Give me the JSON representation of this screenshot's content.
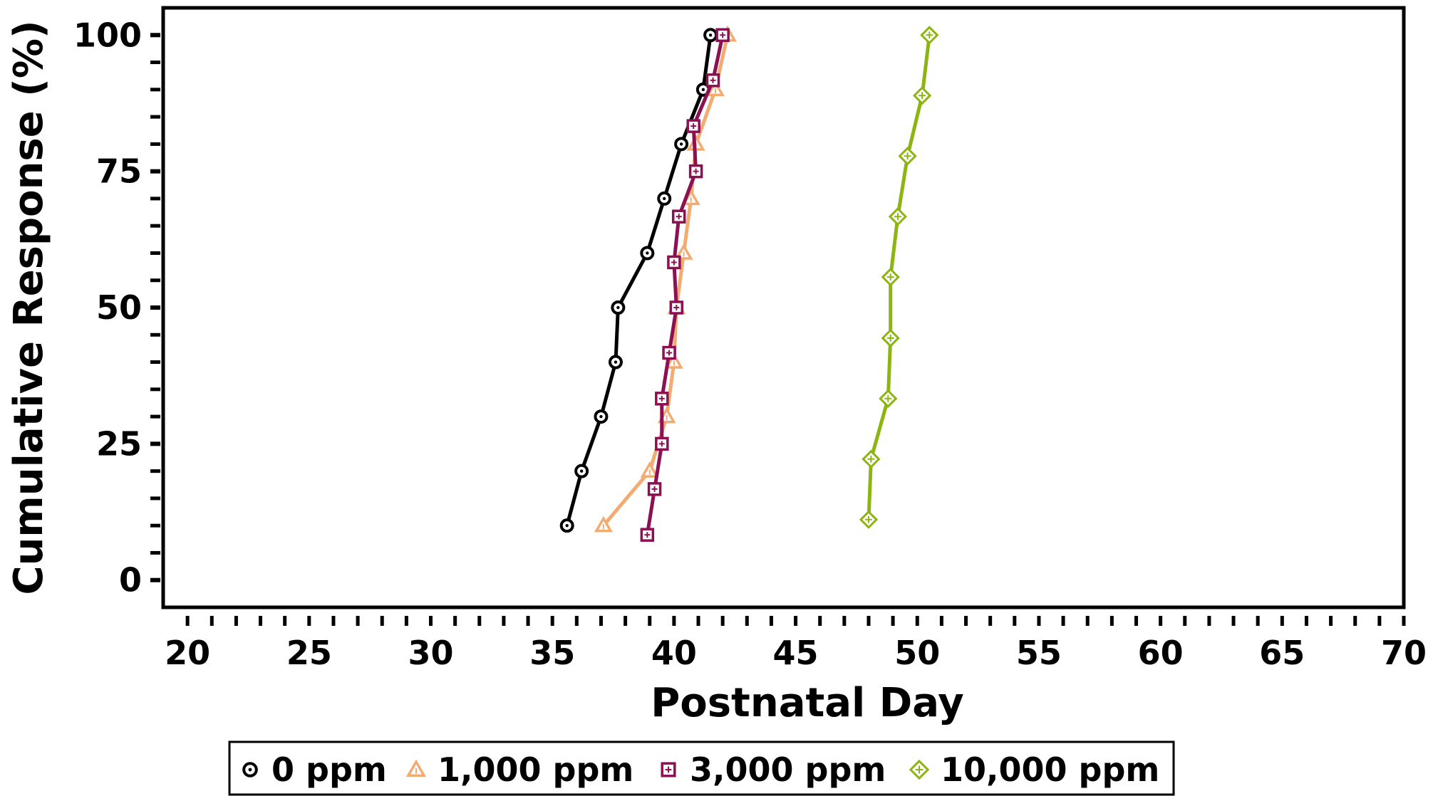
{
  "chart_data": {
    "type": "line",
    "title": "",
    "xlabel": "Postnatal Day",
    "ylabel": "Cumulative Response (%)",
    "xlim": [
      19,
      70
    ],
    "ylim": [
      -5,
      105
    ],
    "x_ticks": [
      20,
      25,
      30,
      35,
      40,
      45,
      50,
      55,
      60,
      65,
      70
    ],
    "x_tick_labels": [
      "20",
      "25",
      "30",
      "35",
      "40",
      "45",
      "50",
      "55",
      "60",
      "65",
      "70"
    ],
    "y_ticks": [
      0,
      25,
      50,
      75,
      100
    ],
    "y_tick_labels": [
      "0",
      "25",
      "50",
      "75",
      "100"
    ],
    "grid": false,
    "legend_position": "bottom",
    "series": [
      {
        "name": "0 ppm",
        "color": "#000000",
        "marker": "circle",
        "points": [
          [
            35.6,
            10
          ],
          [
            36.2,
            20
          ],
          [
            37.0,
            30
          ],
          [
            37.6,
            40
          ],
          [
            37.7,
            50
          ],
          [
            38.9,
            60
          ],
          [
            39.6,
            70
          ],
          [
            40.3,
            80
          ],
          [
            41.2,
            90
          ],
          [
            41.5,
            100
          ]
        ]
      },
      {
        "name": "1,000 ppm",
        "color": "#F2AB70",
        "marker": "triangle",
        "points": [
          [
            37.1,
            10
          ],
          [
            39.0,
            20
          ],
          [
            39.7,
            30
          ],
          [
            40.0,
            40
          ],
          [
            40.1,
            50
          ],
          [
            40.4,
            60
          ],
          [
            40.7,
            70
          ],
          [
            40.9,
            80
          ],
          [
            41.7,
            90
          ],
          [
            42.2,
            100
          ]
        ]
      },
      {
        "name": "3,000 ppm",
        "color": "#8B1152",
        "marker": "square",
        "points": [
          [
            38.9,
            8.3
          ],
          [
            39.2,
            16.7
          ],
          [
            39.5,
            25
          ],
          [
            39.5,
            33.3
          ],
          [
            39.8,
            41.7
          ],
          [
            40.1,
            50
          ],
          [
            40.0,
            58.3
          ],
          [
            40.2,
            66.7
          ],
          [
            40.9,
            75
          ],
          [
            40.8,
            83.3
          ],
          [
            41.6,
            91.7
          ],
          [
            42.0,
            100
          ]
        ]
      },
      {
        "name": "10,000 ppm",
        "color": "#8CB512",
        "marker": "diamond",
        "points": [
          [
            48.0,
            11.1
          ],
          [
            48.1,
            22.2
          ],
          [
            48.8,
            33.3
          ],
          [
            48.9,
            44.4
          ],
          [
            48.9,
            55.6
          ],
          [
            49.2,
            66.7
          ],
          [
            49.6,
            77.8
          ],
          [
            50.2,
            88.9
          ],
          [
            50.5,
            100
          ]
        ]
      }
    ]
  }
}
